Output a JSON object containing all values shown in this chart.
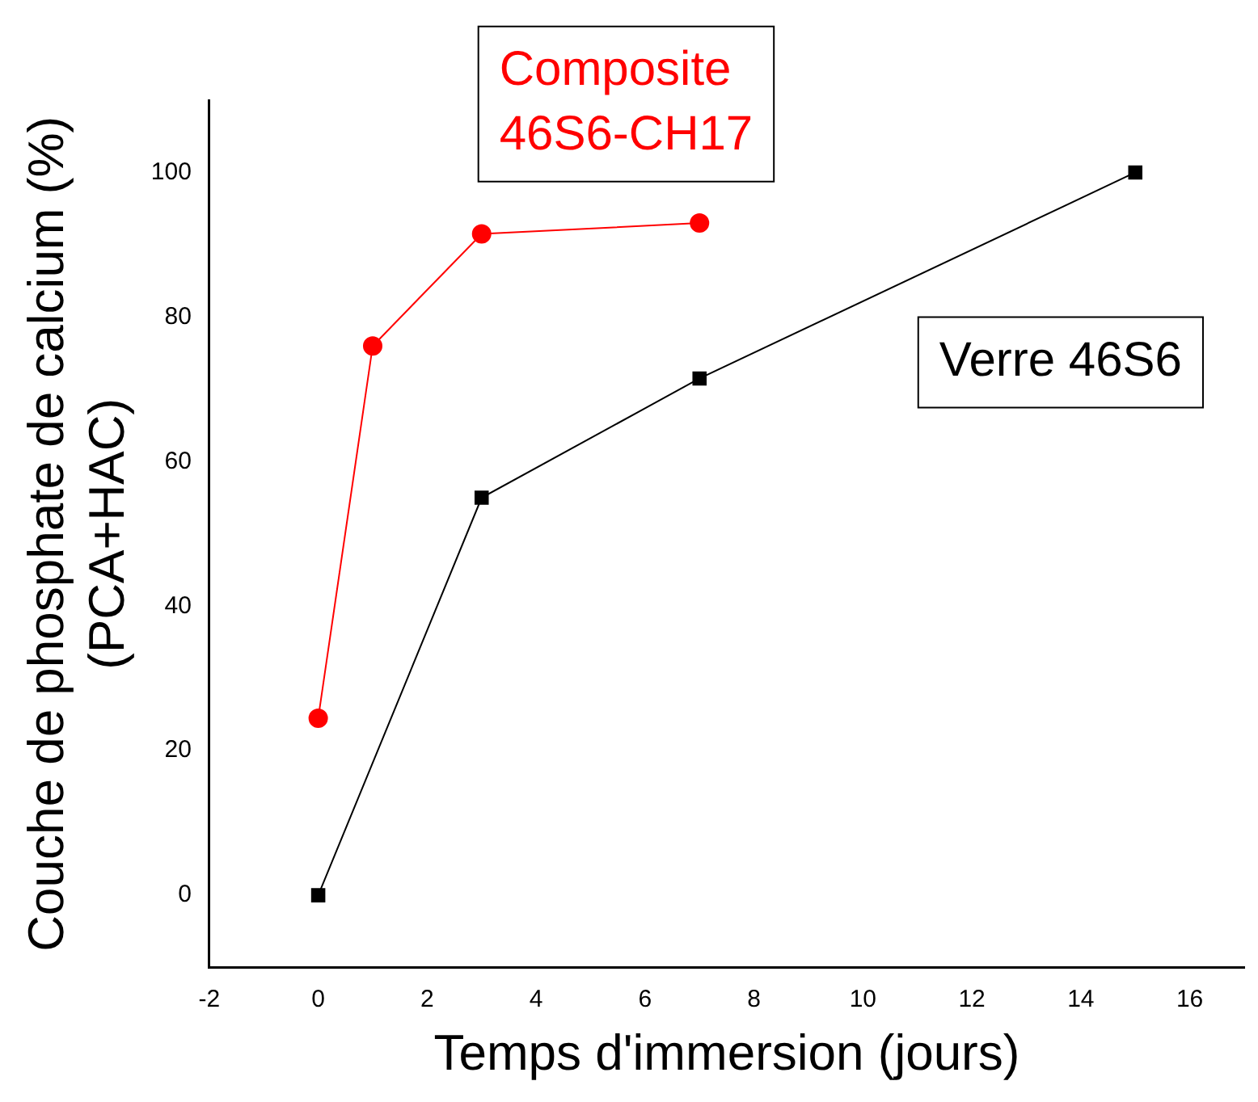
{
  "chart_data": {
    "type": "line",
    "xlabel": "Temps d'immersion (jours)",
    "ylabel": "Couche de phosphate de calcium (%)\n(PCA+HAC)",
    "series": [
      {
        "name": "Composite 46S6-CH17",
        "color": "#ff0000",
        "marker": "circle",
        "x": [
          0,
          1,
          3,
          7
        ],
        "values": [
          24.5,
          76,
          91.5,
          93
        ]
      },
      {
        "name": "Verre 46S6",
        "color": "#000000",
        "marker": "square",
        "x": [
          0,
          3,
          7,
          15
        ],
        "values": [
          0,
          55,
          71.5,
          100
        ]
      }
    ],
    "xlim": [
      -2,
      17
    ],
    "xticks": [
      -2,
      0,
      2,
      4,
      6,
      8,
      10,
      12,
      14,
      16
    ],
    "ylim": [
      -10,
      110
    ],
    "yticks": [
      0,
      20,
      40,
      60,
      80,
      100
    ],
    "grid": false,
    "legend": false
  }
}
